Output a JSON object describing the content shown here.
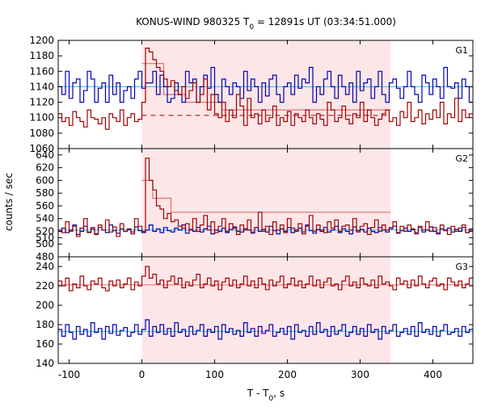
{
  "chart_data": {
    "type": "line",
    "title": "KONUS-WIND 980325 T",
    "title_sub": "0",
    "title_rest": " = 12891s UT (03:34:51.000)",
    "xlabel": "T - T",
    "xlabel_sub": "0",
    "xlabel_rest": ", s",
    "ylabel": "counts / sec",
    "xlim": [
      -115,
      455
    ],
    "x_ticks": [
      -100,
      0,
      100,
      200,
      300,
      400
    ],
    "x_tick_labels": [
      "-100",
      "0",
      "100",
      "200",
      "300",
      "400"
    ],
    "highlight_interval": [
      0,
      342
    ],
    "colors": {
      "red": "#a00000",
      "blue": "#0000b0",
      "background_line": "#30c0d8",
      "model_line": "#e07070",
      "shade": "#fde6e8",
      "grid": "#cccccc"
    },
    "grid": false,
    "bin_width": 5,
    "panels": [
      {
        "label": "G1",
        "ylim": [
          1060,
          1200
        ],
        "y_ticks": [
          1060,
          1080,
          1100,
          1120,
          1140,
          1160,
          1180,
          1200
        ],
        "y_tick_labels": [
          "1060",
          "1080",
          "1100",
          "1120",
          "1140",
          "1160",
          "1180",
          "1200"
        ],
        "series": [
          {
            "color": "blue",
            "values": [
              1140,
              1130,
              1160,
              1125,
              1145,
              1150,
              1120,
              1135,
              1160,
              1150,
              1120,
              1138,
              1145,
              1120,
              1155,
              1130,
              1145,
              1120,
              1135,
              1140,
              1125,
              1150,
              1160,
              1138,
              1145,
              1145,
              1160,
              1130,
              1155,
              1140,
              1120,
              1125,
              1145,
              1130,
              1120,
              1160,
              1145,
              1150,
              1120,
              1140,
              1155,
              1138,
              1165,
              1130,
              1120,
              1150,
              1140,
              1130,
              1145,
              1140,
              1125,
              1160,
              1135,
              1150,
              1140,
              1120,
              1145,
              1128,
              1150,
              1155,
              1130,
              1120,
              1140,
              1145,
              1130,
              1155,
              1138,
              1150,
              1145,
              1165,
              1120,
              1140,
              1130,
              1150,
              1160,
              1140,
              1125,
              1155,
              1140,
              1130,
              1145,
              1120,
              1160,
              1135,
              1145,
              1150,
              1125,
              1140,
              1160,
              1130,
              1120,
              1145,
              1150,
              1138,
              1125,
              1140,
              1160,
              1140,
              1130,
              1120,
              1155,
              1145,
              1130,
              1150,
              1140,
              1125,
              1165,
              1140,
              1138,
              1145,
              1125,
              1150,
              1140,
              1120
            ]
          },
          {
            "color": "red",
            "values": [
              1105,
              1095,
              1100,
              1090,
              1108,
              1100,
              1095,
              1088,
              1110,
              1100,
              1098,
              1092,
              1100,
              1085,
              1105,
              1100,
              1095,
              1110,
              1090,
              1100,
              1105,
              1095,
              1098,
              1120,
              1190,
              1185,
              1175,
              1165,
              1160,
              1150,
              1140,
              1148,
              1135,
              1130,
              1140,
              1125,
              1135,
              1145,
              1120,
              1130,
              1150,
              1110,
              1130,
              1105,
              1100,
              1120,
              1095,
              1110,
              1100,
              1130,
              1115,
              1090,
              1125,
              1100,
              1105,
              1092,
              1110,
              1095,
              1100,
              1115,
              1090,
              1100,
              1095,
              1108,
              1090,
              1105,
              1100,
              1095,
              1110,
              1100,
              1092,
              1105,
              1098,
              1090,
              1120,
              1110,
              1095,
              1100,
              1115,
              1098,
              1092,
              1105,
              1100,
              1120,
              1095,
              1110,
              1100,
              1090,
              1098,
              1105,
              1110,
              1095,
              1100,
              1090,
              1108,
              1100,
              1120,
              1095,
              1100,
              1110,
              1092,
              1105,
              1098,
              1110,
              1100,
              1120,
              1092,
              1105,
              1100,
              1125,
              1095,
              1110,
              1100,
              1105
            ]
          }
        ],
        "background_level": 1140,
        "dashed_level": 1103,
        "model": [
          [
            0,
            1170
          ],
          [
            30,
            1170
          ],
          [
            30,
            1130
          ],
          [
            60,
            1130
          ],
          [
            60,
            1120
          ],
          [
            110,
            1120
          ],
          [
            110,
            1110
          ],
          [
            342,
            1110
          ]
        ]
      },
      {
        "label": "G2",
        "ylim": [
          480,
          650
        ],
        "y_ticks": [
          480,
          500,
          510,
          520,
          540,
          560,
          580,
          600,
          620,
          640
        ],
        "y_tick_labels": [
          "480",
          "500",
          "510",
          "520",
          "540",
          "560",
          "580",
          "600",
          "620",
          "640"
        ],
        "series": [
          {
            "color": "blue",
            "values": [
              520,
              525,
              518,
              522,
              530,
              515,
              520,
              528,
              519,
              524,
              516,
              526,
              522,
              518,
              530,
              521,
              517,
              524,
              520,
              523,
              519,
              527,
              521,
              518,
              522,
              530,
              520,
              524,
              518,
              526,
              521,
              519,
              525,
              522,
              530,
              517,
              523,
              520,
              526,
              519,
              524,
              528,
              516,
              522,
              520,
              525,
              518,
              523,
              527,
              520,
              519,
              524,
              522,
              517,
              526,
              520,
              523,
              519,
              528,
              521,
              516,
              524,
              520,
              526,
              518,
              522,
              525,
              519,
              530,
              521,
              517,
              523,
              520,
              526,
              519,
              522,
              528,
              518,
              524,
              520,
              516,
              527,
              521,
              523,
              519,
              525,
              520,
              518,
              526,
              522,
              519,
              524,
              528,
              517,
              521,
              525,
              520,
              523,
              518,
              526,
              519,
              522,
              527,
              520,
              516,
              524,
              521,
              525,
              519,
              523,
              520,
              526,
              518,
              522
            ]
          },
          {
            "color": "red",
            "values": [
              522,
              518,
              535,
              520,
              528,
              512,
              525,
              540,
              518,
              526,
              515,
              530,
              522,
              538,
              519,
              527,
              512,
              532,
              520,
              524,
              516,
              540,
              528,
              520,
              635,
              600,
              585,
              560,
              555,
              540,
              548,
              535,
              538,
              528,
              525,
              532,
              522,
              540,
              520,
              530,
              545,
              522,
              535,
              518,
              528,
              540,
              520,
              532,
              525,
              515,
              530,
              522,
              538,
              519,
              526,
              550,
              520,
              528,
              515,
              535,
              522,
              530,
              518,
              540,
              525,
              520,
              532,
              516,
              528,
              545,
              520,
              530,
              522,
              518,
              535,
              525,
              538,
              520,
              528,
              530,
              522,
              540,
              519,
              528,
              532,
              515,
              526,
              538,
              520,
              530,
              522,
              526,
              535,
              518,
              528,
              520,
              530,
              524,
              516,
              528,
              522,
              535,
              520,
              526,
              518,
              530,
              522,
              515,
              528,
              520,
              525,
              530,
              518,
              524
            ]
          }
        ],
        "background_level": 522,
        "dashed_level": null,
        "model": [
          [
            0,
            600
          ],
          [
            15,
            600
          ],
          [
            15,
            572
          ],
          [
            40,
            572
          ],
          [
            40,
            550
          ],
          [
            342,
            550
          ]
        ]
      },
      {
        "label": "G3",
        "ylim": [
          140,
          250
        ],
        "y_ticks": [
          140,
          160,
          180,
          200,
          220,
          240
        ],
        "y_tick_labels": [
          "140",
          "160",
          "180",
          "200",
          "220",
          "240"
        ],
        "series": [
          {
            "color": "blue",
            "values": [
              175,
              168,
              180,
              172,
              165,
              178,
              170,
              175,
              168,
              182,
              172,
              176,
              165,
              178,
              171,
              180,
              169,
              174,
              177,
              168,
              172,
              180,
              170,
              175,
              185,
              168,
              178,
              172,
              180,
              170,
              176,
              168,
              182,
              172,
              175,
              168,
              178,
              170,
              174,
              180,
              168,
              175,
              172,
              178,
              165,
              180,
              172,
              176,
              170,
              174,
              168,
              182,
              172,
              176,
              168,
              178,
              171,
              174,
              180,
              168,
              172,
              176,
              170,
              178,
              165,
              180,
              172,
              174,
              168,
              178,
              170,
              182,
              172,
              175,
              168,
              178,
              170,
              174,
              180,
              168,
              172,
              178,
              170,
              176,
              168,
              180,
              172,
              175,
              165,
              178,
              171,
              174,
              180,
              168,
              172,
              176,
              170,
              178,
              168,
              182,
              172,
              175,
              170,
              178,
              168,
              174,
              180,
              170,
              172,
              176,
              168,
              178,
              172,
              175
            ]
          },
          {
            "color": "red",
            "values": [
              225,
              220,
              228,
              215,
              222,
              218,
              230,
              220,
              216,
              225,
              222,
              228,
              218,
              215,
              225,
              220,
              226,
              218,
              222,
              228,
              216,
              224,
              220,
              230,
              240,
              228,
              232,
              222,
              226,
              218,
              225,
              230,
              222,
              228,
              218,
              224,
              220,
              226,
              232,
              218,
              222,
              228,
              220,
              225,
              216,
              224,
              228,
              220,
              226,
              218,
              222,
              230,
              220,
              225,
              218,
              228,
              222,
              216,
              226,
              220,
              224,
              230,
              218,
              222,
              228,
              220,
              225,
              218,
              222,
              230,
              220,
              226,
              218,
              224,
              228,
              220,
              222,
              216,
              225,
              230,
              220,
              224,
              218,
              228,
              222,
              220,
              226,
              218,
              230,
              222,
              224,
              220,
              216,
              228,
              222,
              225,
              218,
              226,
              220,
              230,
              222,
              218,
              225,
              228,
              220,
              222,
              216,
              228,
              224,
              220,
              225,
              218,
              222,
              228
            ]
          }
        ],
        "background_level_red": 221,
        "background_level_blue": 173,
        "dashed_level": null,
        "model": null
      }
    ]
  }
}
